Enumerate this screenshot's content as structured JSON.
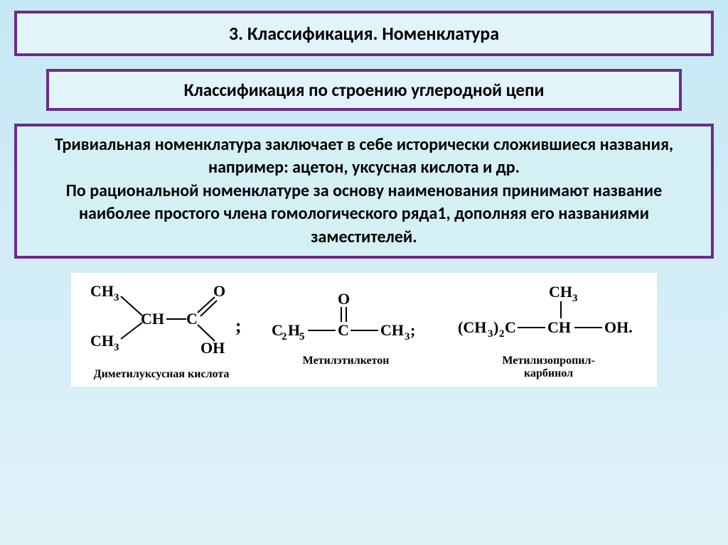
{
  "title": "3. Классификация. Номенклатура",
  "subtitle": "Классификация по строению углеродной цепи",
  "content": "Тривиальная номенклатура заключает в себе исторически сложившиеся названия, например: ацетон, уксусная кислота и др.\nПо рациональной номенклатуре за основу наименования принимают название наиболее простого члена гомологического ряда1, дополняя его названиями заместителей.",
  "structures": [
    {
      "label": "Диметилуксусная кислота"
    },
    {
      "label": "Метилэтилкетон"
    },
    {
      "label": "Метилизопропил-\nкарбинол"
    }
  ],
  "colors": {
    "border": "#6a2c8a",
    "box_bg": "#e2f4fa",
    "content_bg": "#d5f0f5",
    "page_bg_top": "#c5e8f5",
    "page_bg_bottom": "#e0f2f8"
  },
  "typography": {
    "title_fontsize": 26,
    "subtitle_fontsize": 25,
    "content_fontsize": 24,
    "formula_fontsize": 22,
    "label_fontsize": 16
  }
}
